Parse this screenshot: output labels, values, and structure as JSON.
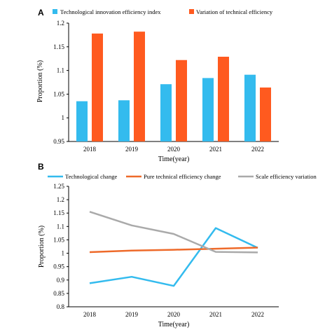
{
  "chart_data": [
    {
      "panel_label": "A",
      "type": "bar",
      "categories": [
        "2018",
        "2019",
        "2020",
        "2021",
        "2022"
      ],
      "series": [
        {
          "name": "Technological innovation efficiency index",
          "color": "#33bbee",
          "values": [
            1.035,
            1.037,
            1.071,
            1.084,
            1.091
          ]
        },
        {
          "name": "Variation of technical efficiency",
          "color": "#ff5a1f",
          "values": [
            1.178,
            1.182,
            1.122,
            1.129,
            1.064
          ]
        }
      ],
      "xlabel": "Time(year)",
      "ylabel": "Proportion (%)",
      "ylim": [
        0.95,
        1.2
      ],
      "yticks": [
        "0.95",
        "1",
        "1.05",
        "1.1",
        "1.15",
        "1.2"
      ],
      "legend": "top",
      "grid": false
    },
    {
      "panel_label": "B",
      "type": "line",
      "categories": [
        "2018",
        "2019",
        "2020",
        "2021",
        "2022"
      ],
      "series": [
        {
          "name": "Technological change",
          "color": "#33bbee",
          "values": [
            0.888,
            0.912,
            0.878,
            1.094,
            1.02
          ]
        },
        {
          "name": "Pure technical efficiency change",
          "color": "#ee6a2a",
          "values": [
            1.004,
            1.01,
            1.013,
            1.017,
            1.021
          ]
        },
        {
          "name": "Scale efficiency variation",
          "color": "#aaaaaa",
          "values": [
            1.155,
            1.104,
            1.072,
            1.005,
            1.003
          ]
        }
      ],
      "xlabel": "Time(year)",
      "ylabel": "Proportion (%)",
      "ylim": [
        0.8,
        1.25
      ],
      "yticks": [
        "0.8",
        "0.85",
        "0.9",
        "0.95",
        "1",
        "1.05",
        "1.1",
        "1.15",
        "1.2",
        "1.25"
      ],
      "legend": "top",
      "grid": false
    }
  ]
}
